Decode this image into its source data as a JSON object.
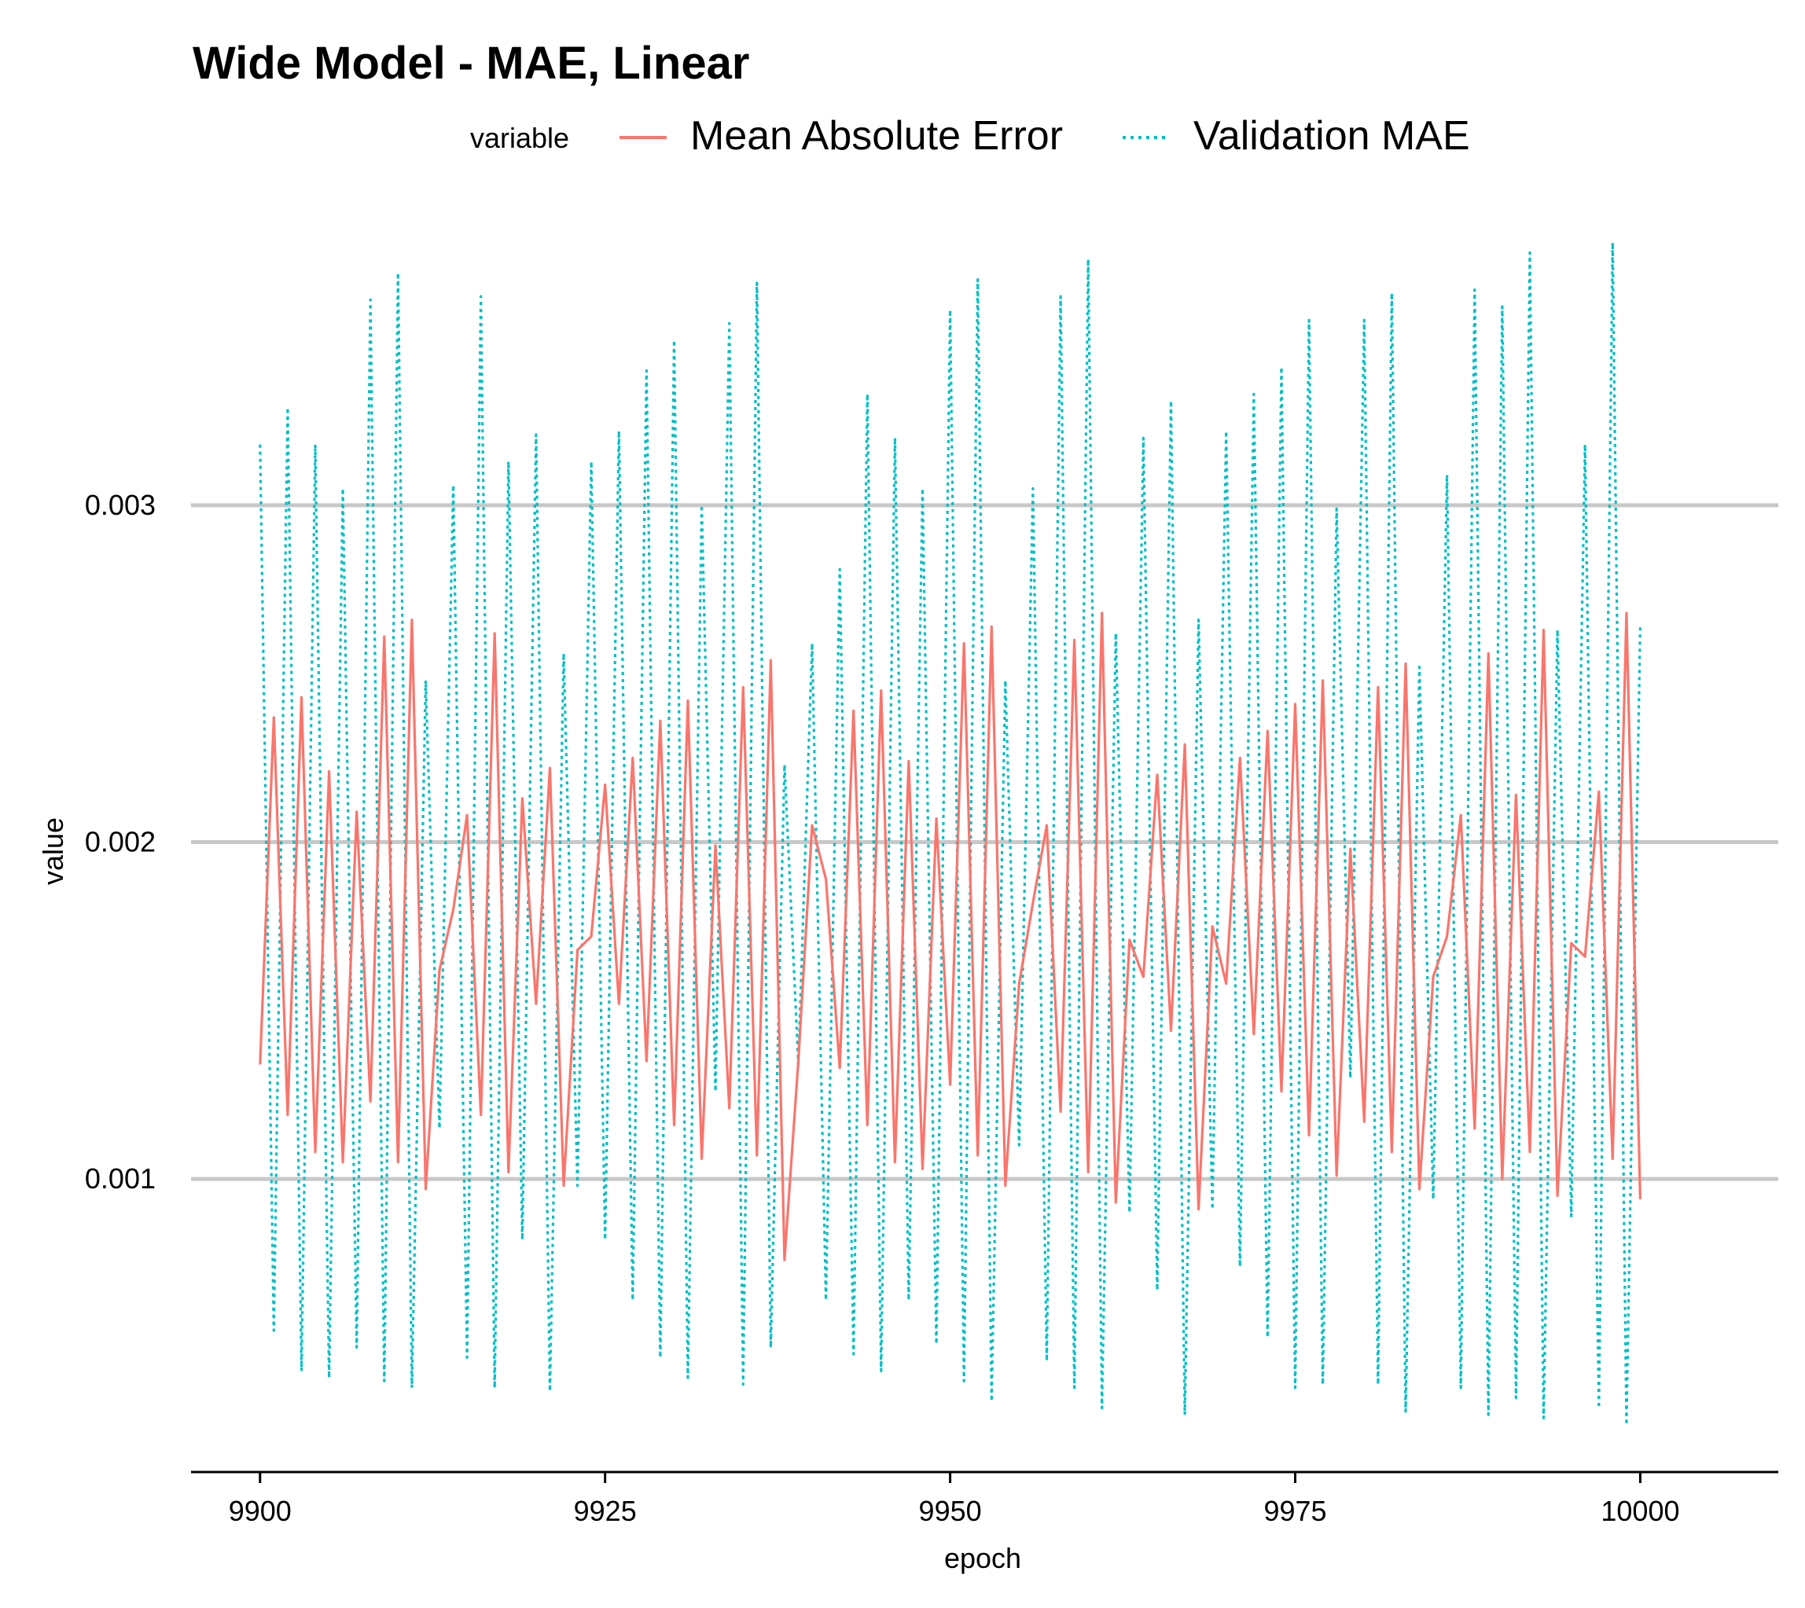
{
  "chart_data": {
    "type": "line",
    "title": "Wide Model - MAE, Linear",
    "xlabel": "epoch",
    "ylabel": "value",
    "xlim": [
      9895,
      10010
    ],
    "ylim": [
      0.00013,
      0.0038
    ],
    "xticks": [
      9900,
      9925,
      9950,
      9975,
      10000
    ],
    "xtick_labels": [
      "9900",
      "9925",
      "9950",
      "9975",
      "10000"
    ],
    "yticks": [
      0.001,
      0.002,
      0.003
    ],
    "ytick_labels": [
      "0.001",
      "0.002",
      "0.003"
    ],
    "grid": "horizontal-major",
    "legend": {
      "title": "variable",
      "position": "top"
    },
    "x": [
      9900,
      9901,
      9902,
      9903,
      9904,
      9905,
      9906,
      9907,
      9908,
      9909,
      9910,
      9911,
      9912,
      9913,
      9914,
      9915,
      9916,
      9917,
      9918,
      9919,
      9920,
      9921,
      9922,
      9923,
      9924,
      9925,
      9926,
      9927,
      9928,
      9929,
      9930,
      9931,
      9932,
      9933,
      9934,
      9935,
      9936,
      9937,
      9938,
      9939,
      9940,
      9941,
      9942,
      9943,
      9944,
      9945,
      9946,
      9947,
      9948,
      9949,
      9950,
      9951,
      9952,
      9953,
      9954,
      9955,
      9956,
      9957,
      9958,
      9959,
      9960,
      9961,
      9962,
      9963,
      9964,
      9965,
      9966,
      9967,
      9968,
      9969,
      9970,
      9971,
      9972,
      9973,
      9974,
      9975,
      9976,
      9977,
      9978,
      9979,
      9980,
      9981,
      9982,
      9983,
      9984,
      9985,
      9986,
      9987,
      9988,
      9989,
      9990,
      9991,
      9992,
      9993,
      9994,
      9995,
      9996,
      9997,
      9998,
      9999,
      10000
    ],
    "series": [
      {
        "name": "Mean Absolute Error",
        "color": "#F8766D",
        "dash": "solid",
        "values": [
          0.00134,
          0.00237,
          0.00119,
          0.00243,
          0.00108,
          0.00221,
          0.00105,
          0.00209,
          0.00123,
          0.00261,
          0.00105,
          0.00266,
          0.00097,
          0.00162,
          0.0018,
          0.00208,
          0.00119,
          0.00262,
          0.00102,
          0.00213,
          0.00152,
          0.00222,
          0.00098,
          0.00168,
          0.00172,
          0.00217,
          0.00152,
          0.00225,
          0.00135,
          0.00236,
          0.00116,
          0.00242,
          0.00106,
          0.00199,
          0.00121,
          0.00246,
          0.00107,
          0.00254,
          0.00076,
          0.00135,
          0.00205,
          0.00189,
          0.00133,
          0.00239,
          0.00116,
          0.00245,
          0.00105,
          0.00224,
          0.00103,
          0.00207,
          0.00128,
          0.00259,
          0.00107,
          0.00264,
          0.00098,
          0.00158,
          0.00182,
          0.00205,
          0.0012,
          0.0026,
          0.00102,
          0.00268,
          0.00093,
          0.00171,
          0.0016,
          0.0022,
          0.00144,
          0.00229,
          0.00091,
          0.00175,
          0.00158,
          0.00225,
          0.00143,
          0.00233,
          0.00126,
          0.00241,
          0.00113,
          0.00248,
          0.00101,
          0.00198,
          0.00117,
          0.00246,
          0.00108,
          0.00253,
          0.00097,
          0.0016,
          0.00172,
          0.00208,
          0.00115,
          0.00256,
          0.001,
          0.00214,
          0.00108,
          0.00263,
          0.00095,
          0.0017,
          0.00166,
          0.00215,
          0.00106,
          0.00268,
          0.00094
        ]
      },
      {
        "name": "Validation MAE",
        "color": "#00BFC4",
        "dash": "dotted",
        "values": [
          0.00318,
          0.00055,
          0.00329,
          0.00043,
          0.00318,
          0.00041,
          0.00305,
          0.0005,
          0.00361,
          0.0004,
          0.00369,
          0.00038,
          0.00248,
          0.00115,
          0.00306,
          0.00047,
          0.00362,
          0.00038,
          0.00313,
          0.00082,
          0.00321,
          0.00037,
          0.00256,
          0.00098,
          0.00313,
          0.00082,
          0.00322,
          0.00064,
          0.0034,
          0.00047,
          0.00349,
          0.00041,
          0.003,
          0.00126,
          0.00354,
          0.00039,
          0.00366,
          0.0005,
          0.00223,
          0.00134,
          0.00259,
          0.00064,
          0.00281,
          0.00048,
          0.00333,
          0.00043,
          0.0032,
          0.00064,
          0.00305,
          0.00051,
          0.00358,
          0.0004,
          0.00367,
          0.00034,
          0.00248,
          0.0011,
          0.00305,
          0.00046,
          0.00362,
          0.00038,
          0.00373,
          0.00032,
          0.00262,
          0.0009,
          0.0032,
          0.00067,
          0.00331,
          0.0003,
          0.00266,
          0.00091,
          0.00322,
          0.00074,
          0.00333,
          0.00053,
          0.00341,
          0.00038,
          0.00355,
          0.00039,
          0.00299,
          0.0013,
          0.00355,
          0.00039,
          0.00363,
          0.00031,
          0.00252,
          0.00094,
          0.00309,
          0.00038,
          0.00364,
          0.0003,
          0.00359,
          0.00035,
          0.00375,
          0.00029,
          0.00263,
          0.00089,
          0.00318,
          0.00032,
          0.00378,
          0.00027,
          0.00264
        ]
      }
    ]
  }
}
